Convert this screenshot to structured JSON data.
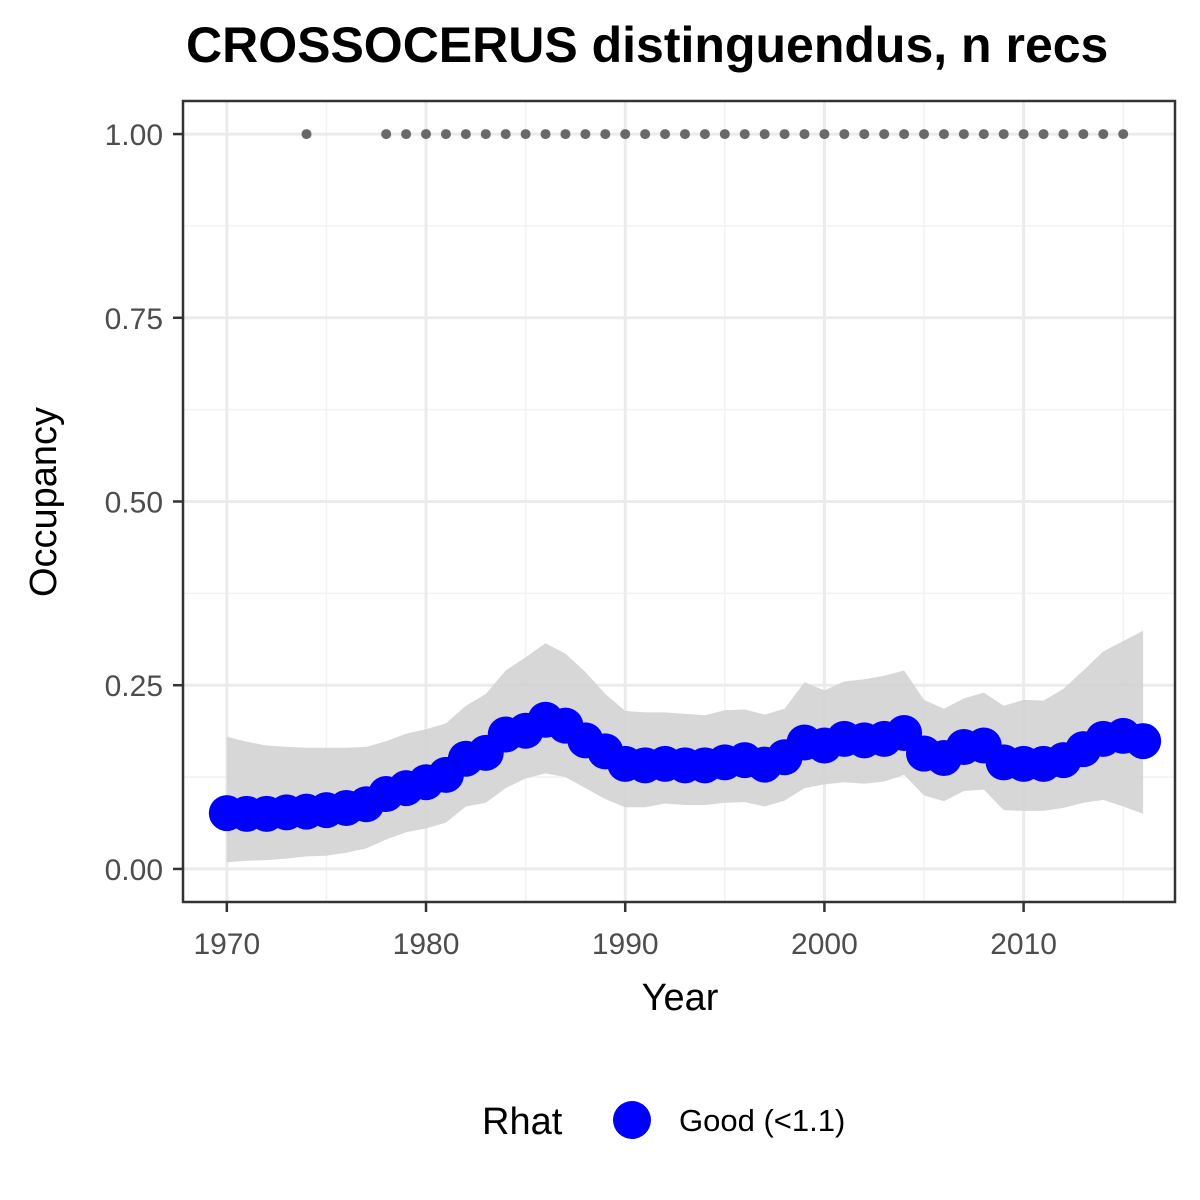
{
  "chart_data": {
    "type": "line",
    "title": "CROSSOCERUS distinguendus, n recs",
    "xlabel": "Year",
    "ylabel": "Occupancy",
    "xlim": [
      1967.8,
      2017.6
    ],
    "ylim": [
      -0.045,
      1.045
    ],
    "x_ticks": [
      1970,
      1980,
      1990,
      2000,
      2010
    ],
    "x_tick_labels": [
      "1970",
      "1980",
      "1990",
      "2000",
      "2010"
    ],
    "x_minor_ticks": [
      1975,
      1985,
      1995,
      2005,
      2015
    ],
    "y_ticks": [
      0,
      0.25,
      0.5,
      0.75,
      1.0
    ],
    "y_tick_labels": [
      "0.00",
      "0.25",
      "0.50",
      "0.75",
      "1.00"
    ],
    "y_minor_ticks": [
      0.125,
      0.375,
      0.625,
      0.875
    ],
    "grid": true,
    "legend": {
      "title": "Rhat",
      "position": "bottom",
      "entries": [
        {
          "label": "Good (<1.1)",
          "color": "#0000ff"
        }
      ]
    },
    "series": [
      {
        "kind": "line-points",
        "color": "#0000ff",
        "x": [
          1970,
          1971,
          1972,
          1973,
          1974,
          1975,
          1976,
          1977,
          1978,
          1979,
          1980,
          1981,
          1982,
          1983,
          1984,
          1985,
          1986,
          1987,
          1988,
          1989,
          1990,
          1991,
          1992,
          1993,
          1994,
          1995,
          1996,
          1997,
          1998,
          1999,
          2000,
          2001,
          2002,
          2003,
          2004,
          2005,
          2006,
          2007,
          2008,
          2009,
          2010,
          2011,
          2012,
          2013,
          2014,
          2015,
          2016
        ],
        "y": [
          0.076,
          0.075,
          0.075,
          0.077,
          0.078,
          0.08,
          0.083,
          0.088,
          0.102,
          0.11,
          0.118,
          0.128,
          0.15,
          0.158,
          0.183,
          0.188,
          0.203,
          0.195,
          0.175,
          0.16,
          0.143,
          0.141,
          0.143,
          0.141,
          0.141,
          0.145,
          0.148,
          0.142,
          0.152,
          0.172,
          0.168,
          0.177,
          0.175,
          0.177,
          0.185,
          0.157,
          0.151,
          0.166,
          0.168,
          0.145,
          0.143,
          0.143,
          0.148,
          0.163,
          0.177,
          0.181,
          0.174
        ]
      },
      {
        "kind": "ribbon",
        "color": "#d3d3d3",
        "x": [
          1970,
          1971,
          1972,
          1973,
          1974,
          1975,
          1976,
          1977,
          1978,
          1979,
          1980,
          1981,
          1982,
          1983,
          1984,
          1985,
          1986,
          1987,
          1988,
          1989,
          1990,
          1991,
          1992,
          1993,
          1994,
          1995,
          1996,
          1997,
          1998,
          1999,
          2000,
          2001,
          2002,
          2003,
          2004,
          2005,
          2006,
          2007,
          2008,
          2009,
          2010,
          2011,
          2012,
          2013,
          2014,
          2015,
          2016
        ],
        "lower": [
          0.009,
          0.011,
          0.012,
          0.014,
          0.017,
          0.018,
          0.022,
          0.028,
          0.04,
          0.05,
          0.055,
          0.063,
          0.085,
          0.09,
          0.11,
          0.123,
          0.13,
          0.125,
          0.11,
          0.095,
          0.084,
          0.084,
          0.089,
          0.087,
          0.087,
          0.09,
          0.091,
          0.085,
          0.093,
          0.11,
          0.115,
          0.118,
          0.116,
          0.119,
          0.128,
          0.1,
          0.092,
          0.106,
          0.108,
          0.08,
          0.079,
          0.079,
          0.083,
          0.09,
          0.094,
          0.085,
          0.075
        ],
        "upper": [
          0.18,
          0.173,
          0.168,
          0.166,
          0.165,
          0.165,
          0.165,
          0.166,
          0.174,
          0.184,
          0.19,
          0.198,
          0.222,
          0.238,
          0.27,
          0.288,
          0.307,
          0.293,
          0.268,
          0.238,
          0.215,
          0.213,
          0.213,
          0.211,
          0.209,
          0.216,
          0.217,
          0.21,
          0.218,
          0.254,
          0.243,
          0.255,
          0.258,
          0.263,
          0.27,
          0.23,
          0.218,
          0.232,
          0.24,
          0.222,
          0.23,
          0.229,
          0.245,
          0.27,
          0.296,
          0.31,
          0.324
        ]
      },
      {
        "kind": "record-points",
        "color": "#696969",
        "x": [
          1974,
          1978,
          1979,
          1980,
          1981,
          1982,
          1983,
          1984,
          1985,
          1986,
          1987,
          1988,
          1989,
          1990,
          1991,
          1992,
          1993,
          1994,
          1995,
          1996,
          1997,
          1998,
          1999,
          2000,
          2001,
          2002,
          2003,
          2004,
          2005,
          2006,
          2007,
          2008,
          2009,
          2010,
          2011,
          2012,
          2013,
          2014,
          2015
        ],
        "y": 1.0
      }
    ]
  }
}
